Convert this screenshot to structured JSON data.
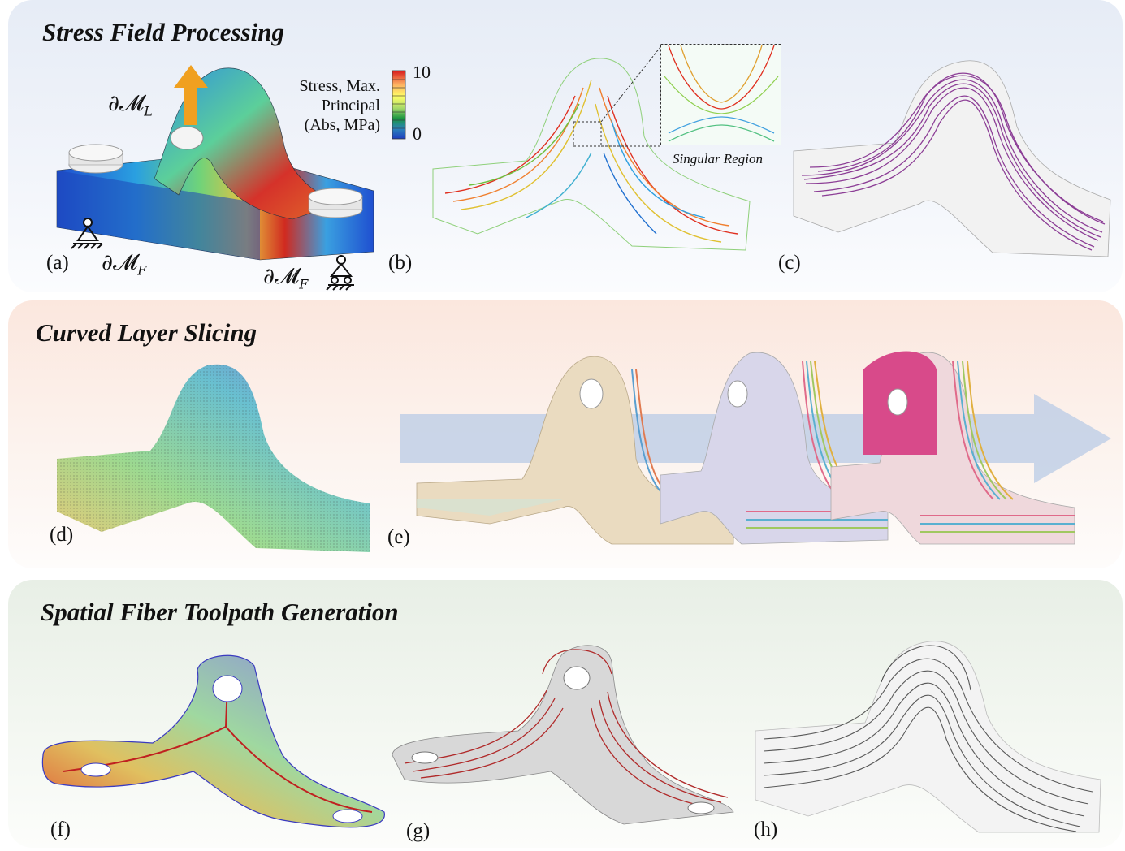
{
  "sections": {
    "stress": {
      "title": "Stress Field Processing"
    },
    "slicing": {
      "title": "Curved Layer Slicing"
    },
    "toolpath": {
      "title": "Spatial Fiber Toolpath Generation"
    }
  },
  "labels": {
    "a": "(a)",
    "b": "(b)",
    "c": "(c)",
    "d": "(d)",
    "e": "(e)",
    "f": "(f)",
    "g": "(g)",
    "h": "(h)"
  },
  "math": {
    "boundary_load": "∂𝓜",
    "load_sub": "L",
    "boundary_fixed": "∂𝓜",
    "fixed_sub": "F"
  },
  "legend": {
    "title_line1": "Stress, Max.",
    "title_line2": "Principal",
    "title_line3": "(Abs, MPa)",
    "max": "10",
    "min": "0",
    "colors": [
      "#d7191c",
      "#fdae61",
      "#ffff66",
      "#a6d96a",
      "#1a9641",
      "#2b83ba",
      "#1f3fbf"
    ]
  },
  "inset": {
    "caption": "Singular Region"
  },
  "colors": {
    "stress_streamlines": "#7b1f86",
    "toolpath_lines": "#b02a2a",
    "arrow_orange": "#f0a020",
    "progress_arrow": "#b9cbe6"
  }
}
